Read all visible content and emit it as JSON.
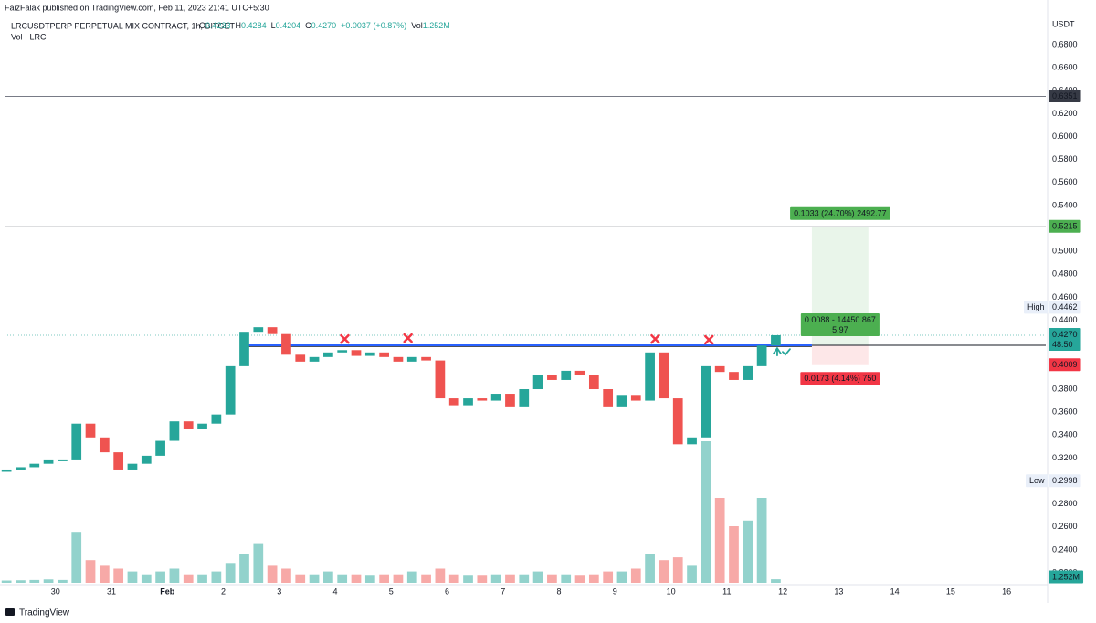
{
  "chart_data": {
    "type": "candlestick",
    "publisher": "FaizFalak published on TradingView.com, Feb 11, 2023 21:41 UTC+5:30",
    "symbol": "LRCUSDTPERP PERPETUAL MIX CONTRACT, 1h, BITGET",
    "header_values": [
      {
        "key": "O",
        "text": "0.4233"
      },
      {
        "key": "H",
        "text": "0.4284"
      },
      {
        "key": "L",
        "text": "0.4204"
      },
      {
        "key": "C",
        "text": "0.4270"
      },
      {
        "text": "+0.0037 (+0.87%)"
      },
      {
        "key": "Vol",
        "text": "1.252M"
      }
    ],
    "volume_title": "Vol · LRC",
    "currency": "USDT",
    "brand": "TradingView",
    "up_color": "#26a69a",
    "down_color": "#ef5350",
    "xlim": [
      29.09,
      47.7
    ],
    "xticks": [
      30,
      31,
      {
        "value": 32,
        "label": "Feb"
      },
      {
        "value": 33,
        "label": "2"
      },
      {
        "value": 34,
        "label": "3"
      },
      {
        "value": 35,
        "label": "4"
      },
      {
        "value": 36,
        "label": "5"
      },
      {
        "value": 37,
        "label": "6"
      },
      {
        "value": 38,
        "label": "7"
      },
      {
        "value": 39,
        "label": "8"
      },
      {
        "value": 40,
        "label": "9"
      },
      {
        "value": 41,
        "label": "10"
      },
      {
        "value": 42,
        "label": "11"
      },
      {
        "value": 43,
        "label": "12"
      },
      {
        "value": 44,
        "label": "13"
      },
      {
        "value": 45,
        "label": "14"
      },
      {
        "value": 46,
        "label": "15"
      },
      {
        "value": 47,
        "label": "16"
      }
    ],
    "ylim": [
      0.2097,
      0.7071
    ],
    "yticks": [
      {
        "value": 0.22,
        "label": "0.2200"
      },
      {
        "value": 0.24,
        "label": "0.2400"
      },
      {
        "value": 0.26,
        "label": "0.2600"
      },
      {
        "value": 0.28,
        "label": "0.2800"
      },
      {
        "value": 0.3,
        "label": "0.3000"
      },
      {
        "value": 0.32,
        "label": "0.3200"
      },
      {
        "value": 0.34,
        "label": "0.3400"
      },
      {
        "value": 0.36,
        "label": "0.3600"
      },
      {
        "value": 0.38,
        "label": "0.3800"
      },
      {
        "value": 0.4,
        "label": "0.4000"
      },
      {
        "value": 0.42,
        "label": "0.4200"
      },
      {
        "value": 0.44,
        "label": "0.4400"
      },
      {
        "value": 0.46,
        "label": "0.4600"
      },
      {
        "value": 0.48,
        "label": "0.4800"
      },
      {
        "value": 0.5,
        "label": "0.5000"
      },
      {
        "value": 0.52,
        "label": "0.5200"
      },
      {
        "value": 0.54,
        "label": "0.5400"
      },
      {
        "value": 0.56,
        "label": "0.5600"
      },
      {
        "value": 0.58,
        "label": "0.5800"
      },
      {
        "value": 0.6,
        "label": "0.6000"
      },
      {
        "value": 0.62,
        "label": "0.6200"
      },
      {
        "value": 0.64,
        "label": "0.6400"
      },
      {
        "value": 0.66,
        "label": "0.6600"
      },
      {
        "value": 0.68,
        "label": "0.6800"
      }
    ],
    "x": [
      29.125,
      29.375,
      29.625,
      29.875,
      30.125,
      30.375,
      30.625,
      30.875,
      31.125,
      31.375,
      31.625,
      31.875,
      32.125,
      32.375,
      32.625,
      32.875,
      33.125,
      33.375,
      33.625,
      33.875,
      34.125,
      34.375,
      34.625,
      34.875,
      35.125,
      35.375,
      35.625,
      35.875,
      36.125,
      36.375,
      36.625,
      36.875,
      37.125,
      37.375,
      37.625,
      37.875,
      38.125,
      38.375,
      38.625,
      38.875,
      39.125,
      39.375,
      39.625,
      39.875,
      40.125,
      40.375,
      40.625,
      40.875,
      41.125,
      41.375,
      41.625,
      41.875,
      42.125,
      42.375,
      42.625,
      42.875
    ],
    "open": [
      0.308,
      0.31,
      0.312,
      0.315,
      0.318,
      0.318,
      0.35,
      0.338,
      0.325,
      0.31,
      0.315,
      0.322,
      0.335,
      0.352,
      0.345,
      0.35,
      0.358,
      0.4,
      0.43,
      0.434,
      0.428,
      0.41,
      0.404,
      0.408,
      0.412,
      0.414,
      0.409,
      0.412,
      0.408,
      0.404,
      0.408,
      0.405,
      0.372,
      0.366,
      0.372,
      0.37,
      0.376,
      0.365,
      0.38,
      0.392,
      0.388,
      0.396,
      0.392,
      0.38,
      0.365,
      0.375,
      0.37,
      0.412,
      0.372,
      0.332,
      0.338,
      0.4,
      0.395,
      0.388,
      0.4,
      0.418
    ],
    "high": 0.4462,
    "low": 0.2998,
    "close": [
      0.31,
      0.312,
      0.315,
      0.318,
      0.318,
      0.35,
      0.338,
      0.325,
      0.31,
      0.315,
      0.322,
      0.335,
      0.352,
      0.345,
      0.35,
      0.358,
      0.4,
      0.43,
      0.434,
      0.428,
      0.41,
      0.404,
      0.408,
      0.412,
      0.414,
      0.409,
      0.412,
      0.408,
      0.404,
      0.408,
      0.405,
      0.372,
      0.366,
      0.372,
      0.37,
      0.376,
      0.365,
      0.38,
      0.392,
      0.388,
      0.396,
      0.392,
      0.38,
      0.365,
      0.375,
      0.37,
      0.412,
      0.372,
      0.332,
      0.338,
      0.4,
      0.395,
      0.388,
      0.4,
      0.418,
      0.427
    ],
    "volume": [
      0.8,
      0.9,
      1.0,
      1.2,
      1.0,
      18,
      8,
      6,
      5,
      4,
      3,
      4,
      5,
      3,
      3,
      4,
      7,
      10,
      14,
      6,
      5,
      3,
      3,
      4,
      3,
      3,
      2.5,
      3,
      3,
      4,
      3,
      5,
      3,
      2.5,
      2.5,
      3,
      3,
      3,
      4,
      3,
      3,
      2.5,
      3,
      4,
      4,
      5,
      10,
      8,
      9,
      6,
      50,
      30,
      20,
      22,
      30,
      1.252
    ],
    "volume_labels": [
      null,
      null,
      null,
      null,
      null,
      null,
      null,
      null,
      null,
      null,
      null,
      null,
      null,
      null,
      null,
      null,
      null,
      null,
      null,
      null,
      null,
      null,
      null,
      null,
      null,
      null,
      null,
      null,
      null,
      null,
      null,
      null,
      null,
      null,
      null,
      null,
      null,
      null,
      null,
      null,
      null,
      null,
      null,
      null,
      null,
      null,
      null,
      null,
      null,
      null,
      null,
      null,
      null,
      null,
      null,
      "1.252M"
    ],
    "levels": [
      {
        "value": 0.6351,
        "color": "#363a45"
      },
      {
        "value": 0.5215,
        "color": "#4caf50"
      }
    ],
    "last_price": {
      "value": 0.427,
      "label": "0.4270",
      "countdown": "48:50",
      "color": "#26a69a"
    },
    "stop_badge": {
      "value": 0.4009,
      "color": "#f23645"
    },
    "high_label": "High",
    "low_label": "Low",
    "support": {
      "value": 0.4182,
      "x": [
        33.38,
        43.52
      ],
      "color": "#2962ff"
    },
    "position": {
      "entry": 0.4182,
      "target": 0.5215,
      "stop": 0.4009,
      "x": [
        43.52,
        44.53
      ],
      "target_label": "0.1033 (24.70%) 2492.77",
      "entry_label": "0.0088 - 14450.867",
      "ratio_label": "5.97",
      "stop_label": "0.0173 (4.14%) 750"
    },
    "markers": {
      "x": [
        35.17,
        36.3,
        40.72,
        41.68
      ],
      "y": [
        0.4237,
        0.4245,
        0.4237,
        0.423
      ],
      "color": "#f23645"
    },
    "arrow": {
      "x": 42.9,
      "y": 0.4133,
      "color": "#26a69a"
    }
  }
}
